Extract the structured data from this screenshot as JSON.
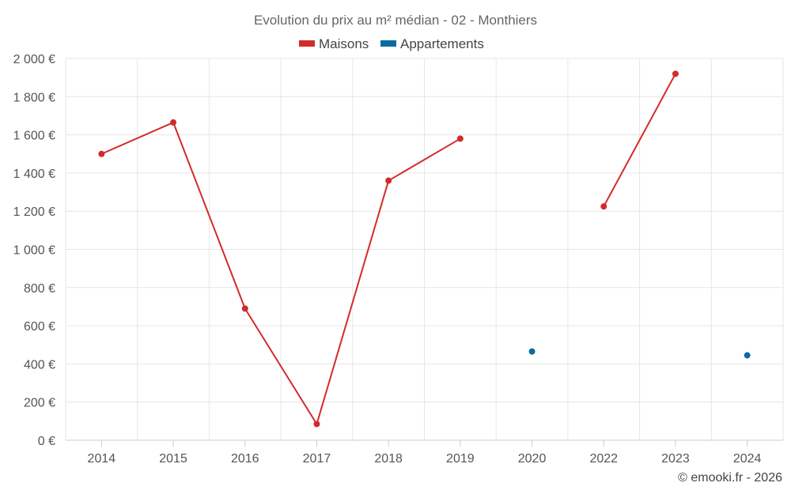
{
  "chart_data": {
    "type": "line",
    "title": "Evolution du prix au m² médian - 02 - Monthiers",
    "categories": [
      "2014",
      "2015",
      "2016",
      "2017",
      "2018",
      "2019",
      "2020",
      "2022",
      "2023",
      "2024"
    ],
    "y_tick_labels": [
      "0 €",
      "200 €",
      "400 €",
      "600 €",
      "800 €",
      "1 000 €",
      "1 200 €",
      "1 400 €",
      "1 600 €",
      "1 800 €",
      "2 000 €"
    ],
    "ylim": [
      0,
      2000
    ],
    "y_step": 200,
    "grid": true,
    "legend_position": "top-center",
    "series": [
      {
        "name": "Maisons",
        "color": "#d42a2a",
        "values": [
          1500,
          1665,
          690,
          85,
          1360,
          1580,
          null,
          1225,
          1920,
          null
        ]
      },
      {
        "name": "Appartements",
        "color": "#0b6aa2",
        "values": [
          null,
          null,
          null,
          null,
          null,
          null,
          465,
          null,
          null,
          445
        ]
      }
    ],
    "credit": "© emooki.fr - 2026"
  }
}
